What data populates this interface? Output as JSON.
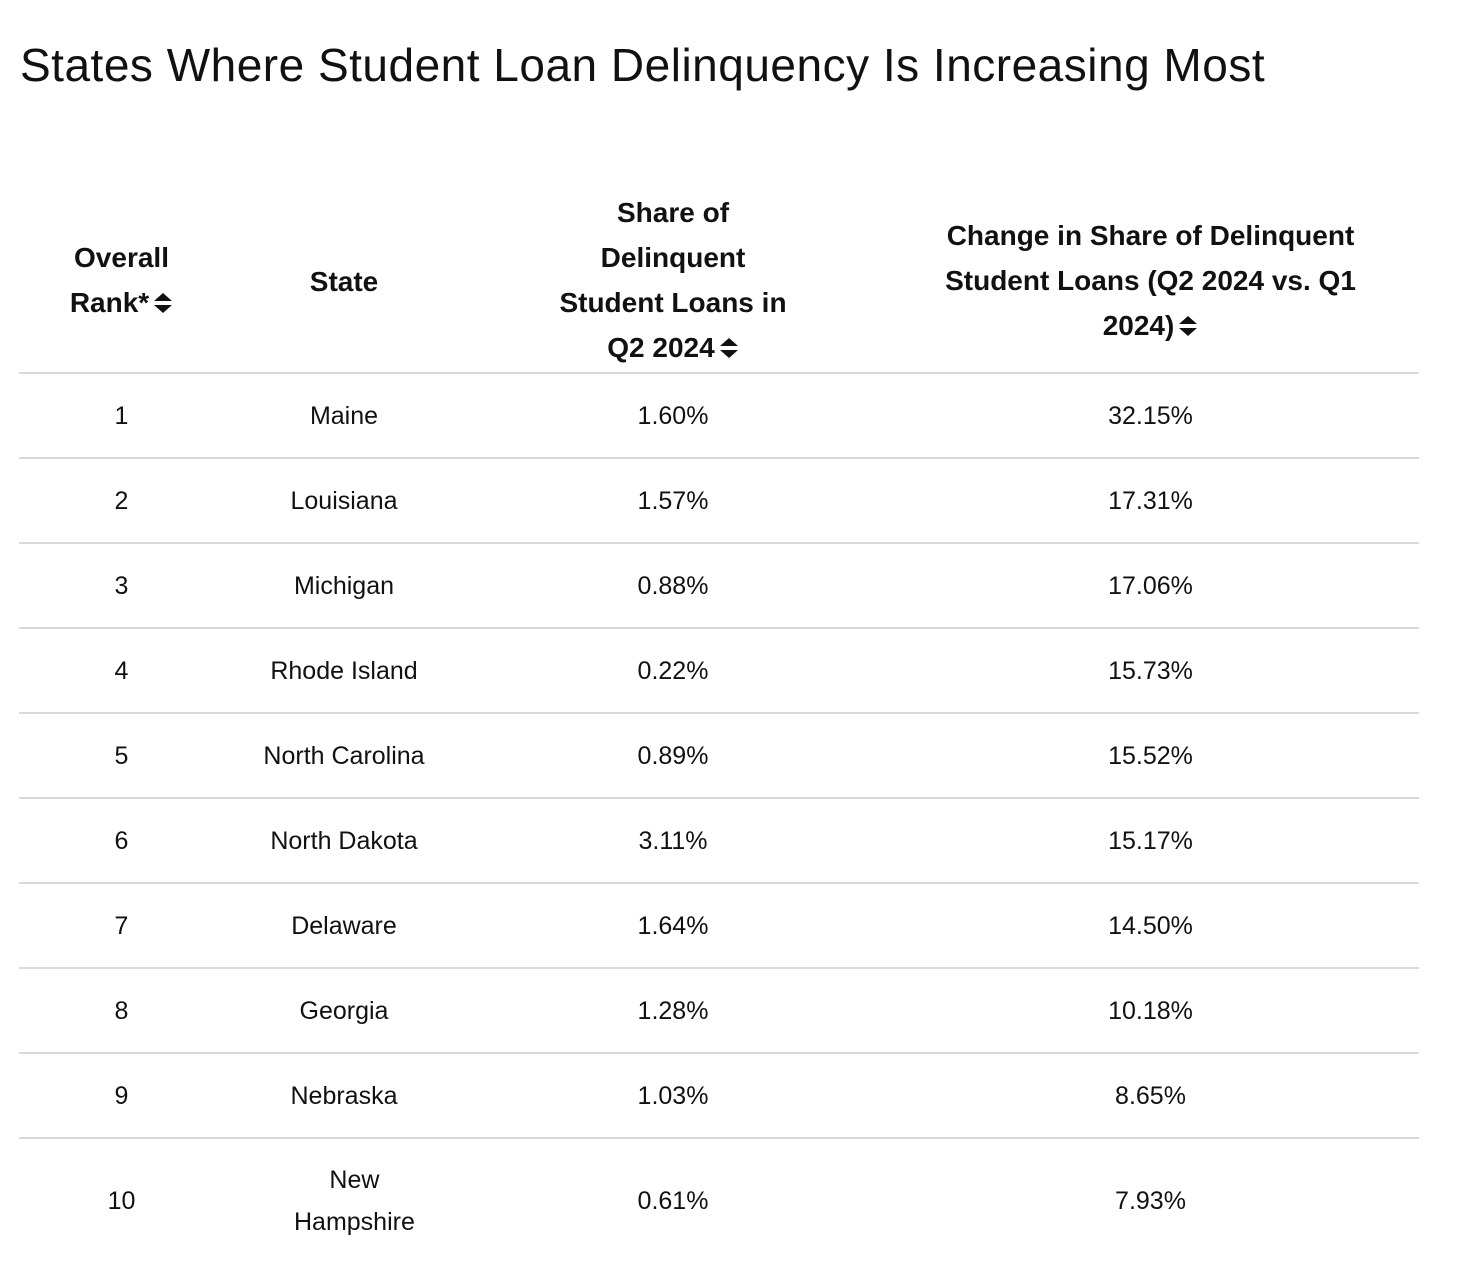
{
  "title": "States Where Student Loan Delinquency Is Increasing Most",
  "table": {
    "headers": [
      {
        "label": "Overall Rank*",
        "sortable": true
      },
      {
        "label": "State",
        "sortable": false
      },
      {
        "label": "Share of Delinquent Student Loans in Q2 2024",
        "sortable": true
      },
      {
        "label": "Change in Share of Delinquent Student Loans (Q2 2024 vs. Q1 2024)",
        "sortable": true
      }
    ],
    "rows": [
      {
        "rank": "1",
        "state": "Maine",
        "share": "1.60%",
        "change": "32.15%"
      },
      {
        "rank": "2",
        "state": "Louisiana",
        "share": "1.57%",
        "change": "17.31%"
      },
      {
        "rank": "3",
        "state": "Michigan",
        "share": "0.88%",
        "change": "17.06%"
      },
      {
        "rank": "4",
        "state": "Rhode Island",
        "share": "0.22%",
        "change": "15.73%"
      },
      {
        "rank": "5",
        "state": "North Carolina",
        "share": "0.89%",
        "change": "15.52%"
      },
      {
        "rank": "6",
        "state": "North Dakota",
        "share": "3.11%",
        "change": "15.17%"
      },
      {
        "rank": "7",
        "state": "Delaware",
        "share": "1.64%",
        "change": "14.50%"
      },
      {
        "rank": "8",
        "state": "Georgia",
        "share": "1.28%",
        "change": "10.18%"
      },
      {
        "rank": "9",
        "state": "Nebraska",
        "share": "1.03%",
        "change": "8.65%"
      },
      {
        "rank": "10",
        "state": "New Hampshire",
        "share": "0.61%",
        "change": "7.93%"
      }
    ]
  },
  "icons": {
    "sort": "sort-icon"
  }
}
